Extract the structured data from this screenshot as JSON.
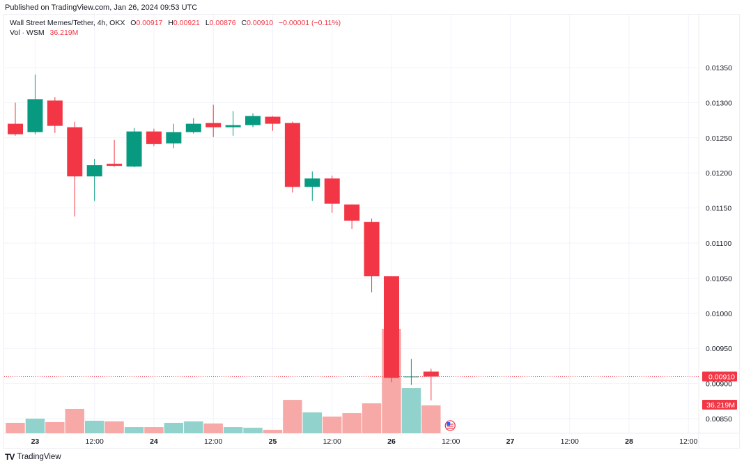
{
  "published": "Published on TradingView.com, Jan 26, 2024 09:53 UTC",
  "legend": {
    "symbol": "Wall Street Memes/Tether, 4h, OKX",
    "o_label": "O",
    "o": "0.00917",
    "h_label": "H",
    "h": "0.00921",
    "l_label": "L",
    "l": "0.00876",
    "c_label": "C",
    "c": "0.00910",
    "change": "−0.00001 (−0.11%)",
    "vol_label": "Vol · WSM",
    "vol": "36.219M"
  },
  "footer": {
    "logo": "TV",
    "brand": "TradingView"
  },
  "colors": {
    "up": "#089981",
    "down": "#f23645",
    "up_vol": "#92d2cc",
    "down_vol": "#f7a9a7"
  },
  "chart_data": {
    "type": "candlestick",
    "title": "Wall Street Memes/Tether, 4h, OKX",
    "ylim": [
      0.0081,
      0.0139
    ],
    "y_ticks": [
      "0.01350",
      "0.01300",
      "0.01250",
      "0.01200",
      "0.01150",
      "0.01100",
      "0.01050",
      "0.01000",
      "0.00950",
      "0.00900",
      "0.00850"
    ],
    "x_ticks": [
      {
        "label": "23",
        "index": 1,
        "bold": true
      },
      {
        "label": "12:00",
        "index": 4
      },
      {
        "label": "24",
        "index": 7,
        "bold": true
      },
      {
        "label": "12:00",
        "index": 10
      },
      {
        "label": "25",
        "index": 13,
        "bold": true
      },
      {
        "label": "12:00",
        "index": 16
      },
      {
        "label": "26",
        "index": 19,
        "bold": true
      },
      {
        "label": "12:00",
        "index": 22
      },
      {
        "label": "27",
        "index": 25,
        "bold": true
      },
      {
        "label": "12:00",
        "index": 28
      },
      {
        "label": "28",
        "index": 31,
        "bold": true
      },
      {
        "label": "12:00",
        "index": 34
      }
    ],
    "last_price_label": "0.00910",
    "last_volume_label": "36.219M",
    "ohlc": [
      [
        0.0127,
        0.013,
        0.01253,
        0.01255
      ],
      [
        0.01258,
        0.0134,
        0.01255,
        0.01305
      ],
      [
        0.01303,
        0.01308,
        0.01257,
        0.01267
      ],
      [
        0.01265,
        0.01273,
        0.01138,
        0.01195
      ],
      [
        0.01195,
        0.0122,
        0.0116,
        0.01211
      ],
      [
        0.01213,
        0.01247,
        0.01209,
        0.0121
      ],
      [
        0.01209,
        0.01264,
        0.01208,
        0.01259
      ],
      [
        0.01259,
        0.01263,
        0.01238,
        0.01241
      ],
      [
        0.01242,
        0.0127,
        0.01235,
        0.01258
      ],
      [
        0.01258,
        0.01278,
        0.01256,
        0.0127
      ],
      [
        0.01271,
        0.01297,
        0.01251,
        0.01265
      ],
      [
        0.01265,
        0.01288,
        0.01253,
        0.01268
      ],
      [
        0.01268,
        0.01285,
        0.01265,
        0.01281
      ],
      [
        0.0128,
        0.01281,
        0.0126,
        0.0127
      ],
      [
        0.01271,
        0.01273,
        0.01172,
        0.0118
      ],
      [
        0.0118,
        0.01202,
        0.0116,
        0.01192
      ],
      [
        0.01192,
        0.01196,
        0.01143,
        0.01156
      ],
      [
        0.01155,
        0.01155,
        0.0112,
        0.01132
      ],
      [
        0.0113,
        0.01135,
        0.0103,
        0.01053
      ],
      [
        0.01053,
        0.01053,
        0.00902,
        0.00908
      ],
      [
        0.00909,
        0.00935,
        0.00898,
        0.0091
      ],
      [
        0.00917,
        0.00921,
        0.00876,
        0.0091
      ]
    ],
    "volume_millions": [
      13.6,
      19.0,
      14.5,
      31.7,
      16.3,
      15.4,
      8.1,
      8.1,
      13.6,
      15.4,
      12.7,
      8.1,
      7.2,
      4.5,
      43.4,
      27.1,
      21.7,
      26.2,
      38.9,
      135.8,
      58.8,
      36.219
    ]
  }
}
